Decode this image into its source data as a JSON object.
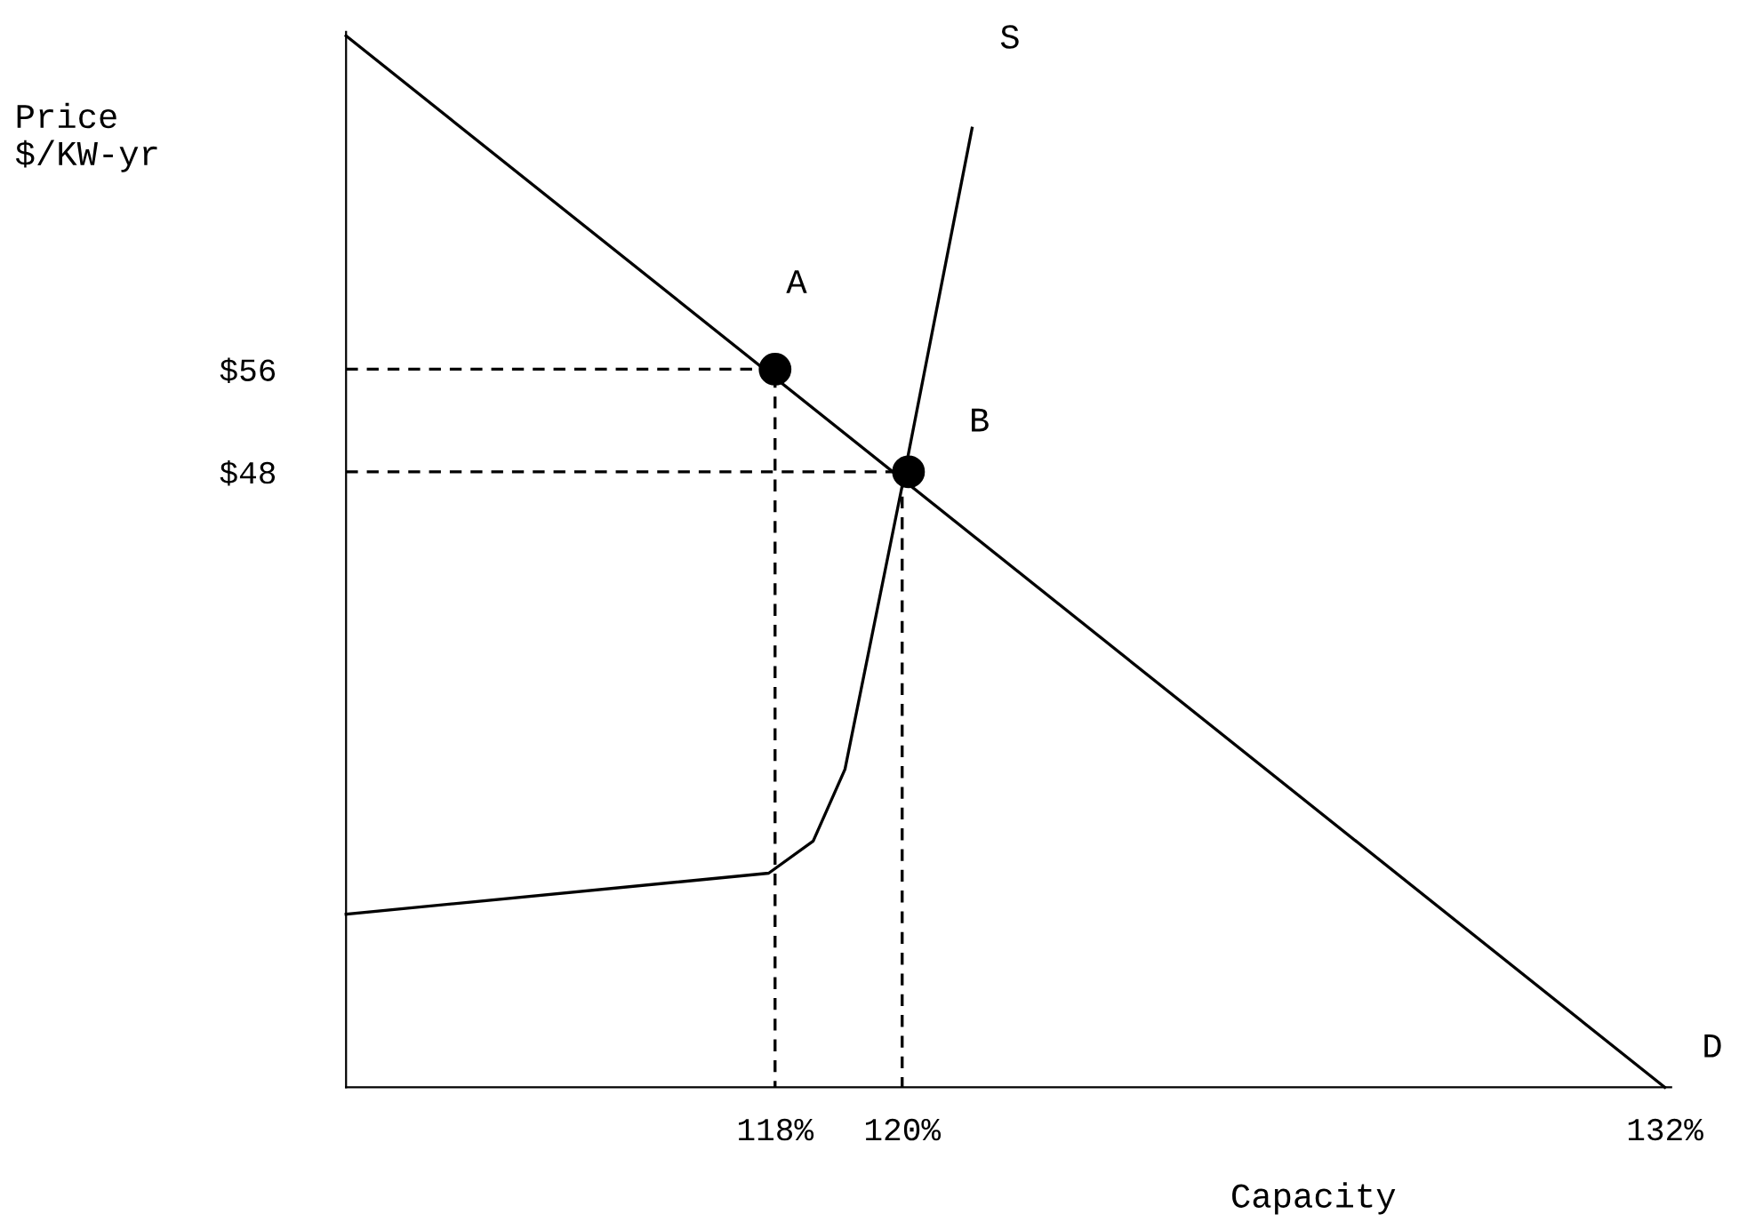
{
  "chart_data": {
    "type": "line",
    "xlabel": "Capacity",
    "ylabel": "Price\n$/KW-yr",
    "xlim": [
      111.25,
      132.1
    ],
    "ylim": [
      0,
      82.3
    ],
    "xticks": [
      {
        "value": 118,
        "label": "118%"
      },
      {
        "value": 120,
        "label": "120%"
      },
      {
        "value": 132,
        "label": "132%"
      }
    ],
    "yticks": [
      {
        "value": 48,
        "label": "$48"
      },
      {
        "value": 56,
        "label": "$56"
      }
    ],
    "grid": false,
    "legend": false,
    "series": [
      {
        "color": "#000000",
        "x": [
          111.25,
          132
        ],
        "values": [
          82,
          0
        ],
        "line_style": "solid",
        "marker": "none"
      },
      {
        "color": "#000000",
        "x": [
          111.25,
          117.9,
          118.6,
          119.1,
          120,
          121.1
        ],
        "values": [
          13.5,
          16.7,
          19.2,
          24.8,
          46.9,
          74.8
        ],
        "line_style": "solid",
        "marker": "none"
      },
      {
        "color": "#000000",
        "x": [
          111.25,
          118,
          118
        ],
        "values": [
          56,
          56,
          0
        ],
        "line_style": "dashed",
        "marker": "none"
      },
      {
        "color": "#000000",
        "x": [
          111.25,
          120,
          120
        ],
        "values": [
          48,
          48,
          0
        ],
        "line_style": "dashed",
        "marker": "none"
      },
      {
        "type": "scatter",
        "color": "#000000",
        "x": [
          118,
          120.1
        ],
        "values": [
          56,
          48
        ],
        "marker": "circle"
      }
    ],
    "annotations": [
      "A",
      "B",
      "S",
      "D"
    ]
  }
}
